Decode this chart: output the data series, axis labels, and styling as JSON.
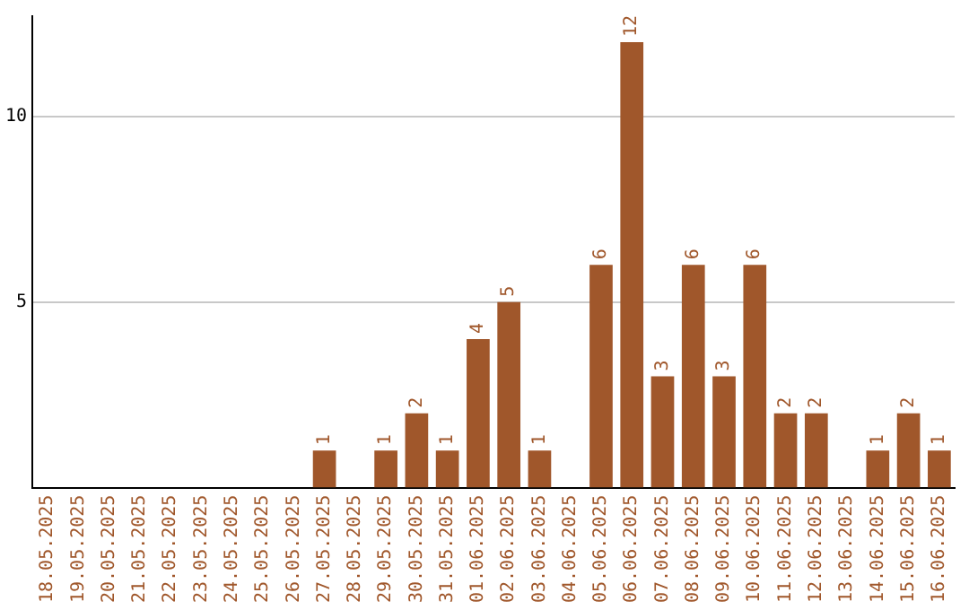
{
  "chart_data": {
    "type": "bar",
    "categories": [
      "18.05.2025",
      "19.05.2025",
      "20.05.2025",
      "21.05.2025",
      "22.05.2025",
      "23.05.2025",
      "24.05.2025",
      "25.05.2025",
      "26.05.2025",
      "27.05.2025",
      "28.05.2025",
      "29.05.2025",
      "30.05.2025",
      "31.05.2025",
      "01.06.2025",
      "02.06.2025",
      "03.06.2025",
      "04.06.2025",
      "05.06.2025",
      "06.06.2025",
      "07.06.2025",
      "08.06.2025",
      "09.06.2025",
      "10.06.2025",
      "11.06.2025",
      "12.06.2025",
      "13.06.2025",
      "14.06.2025",
      "15.06.2025",
      "16.06.2025"
    ],
    "values": [
      0,
      0,
      0,
      0,
      0,
      0,
      0,
      0,
      0,
      1,
      0,
      1,
      2,
      1,
      4,
      5,
      1,
      0,
      6,
      12,
      3,
      6,
      3,
      6,
      2,
      2,
      0,
      1,
      2,
      1
    ],
    "value_labels": [
      null,
      null,
      null,
      null,
      null,
      null,
      null,
      null,
      null,
      "1",
      null,
      "1",
      "2",
      "1",
      "4",
      "5",
      "1",
      null,
      "6",
      "12",
      "3",
      "6",
      "3",
      "6",
      "2",
      "2",
      null,
      "1",
      "2",
      "1"
    ],
    "color": "#a0572b",
    "ylim": [
      0,
      12.7
    ],
    "yticks": [
      5,
      10
    ],
    "grid": "y",
    "legend": false
  }
}
